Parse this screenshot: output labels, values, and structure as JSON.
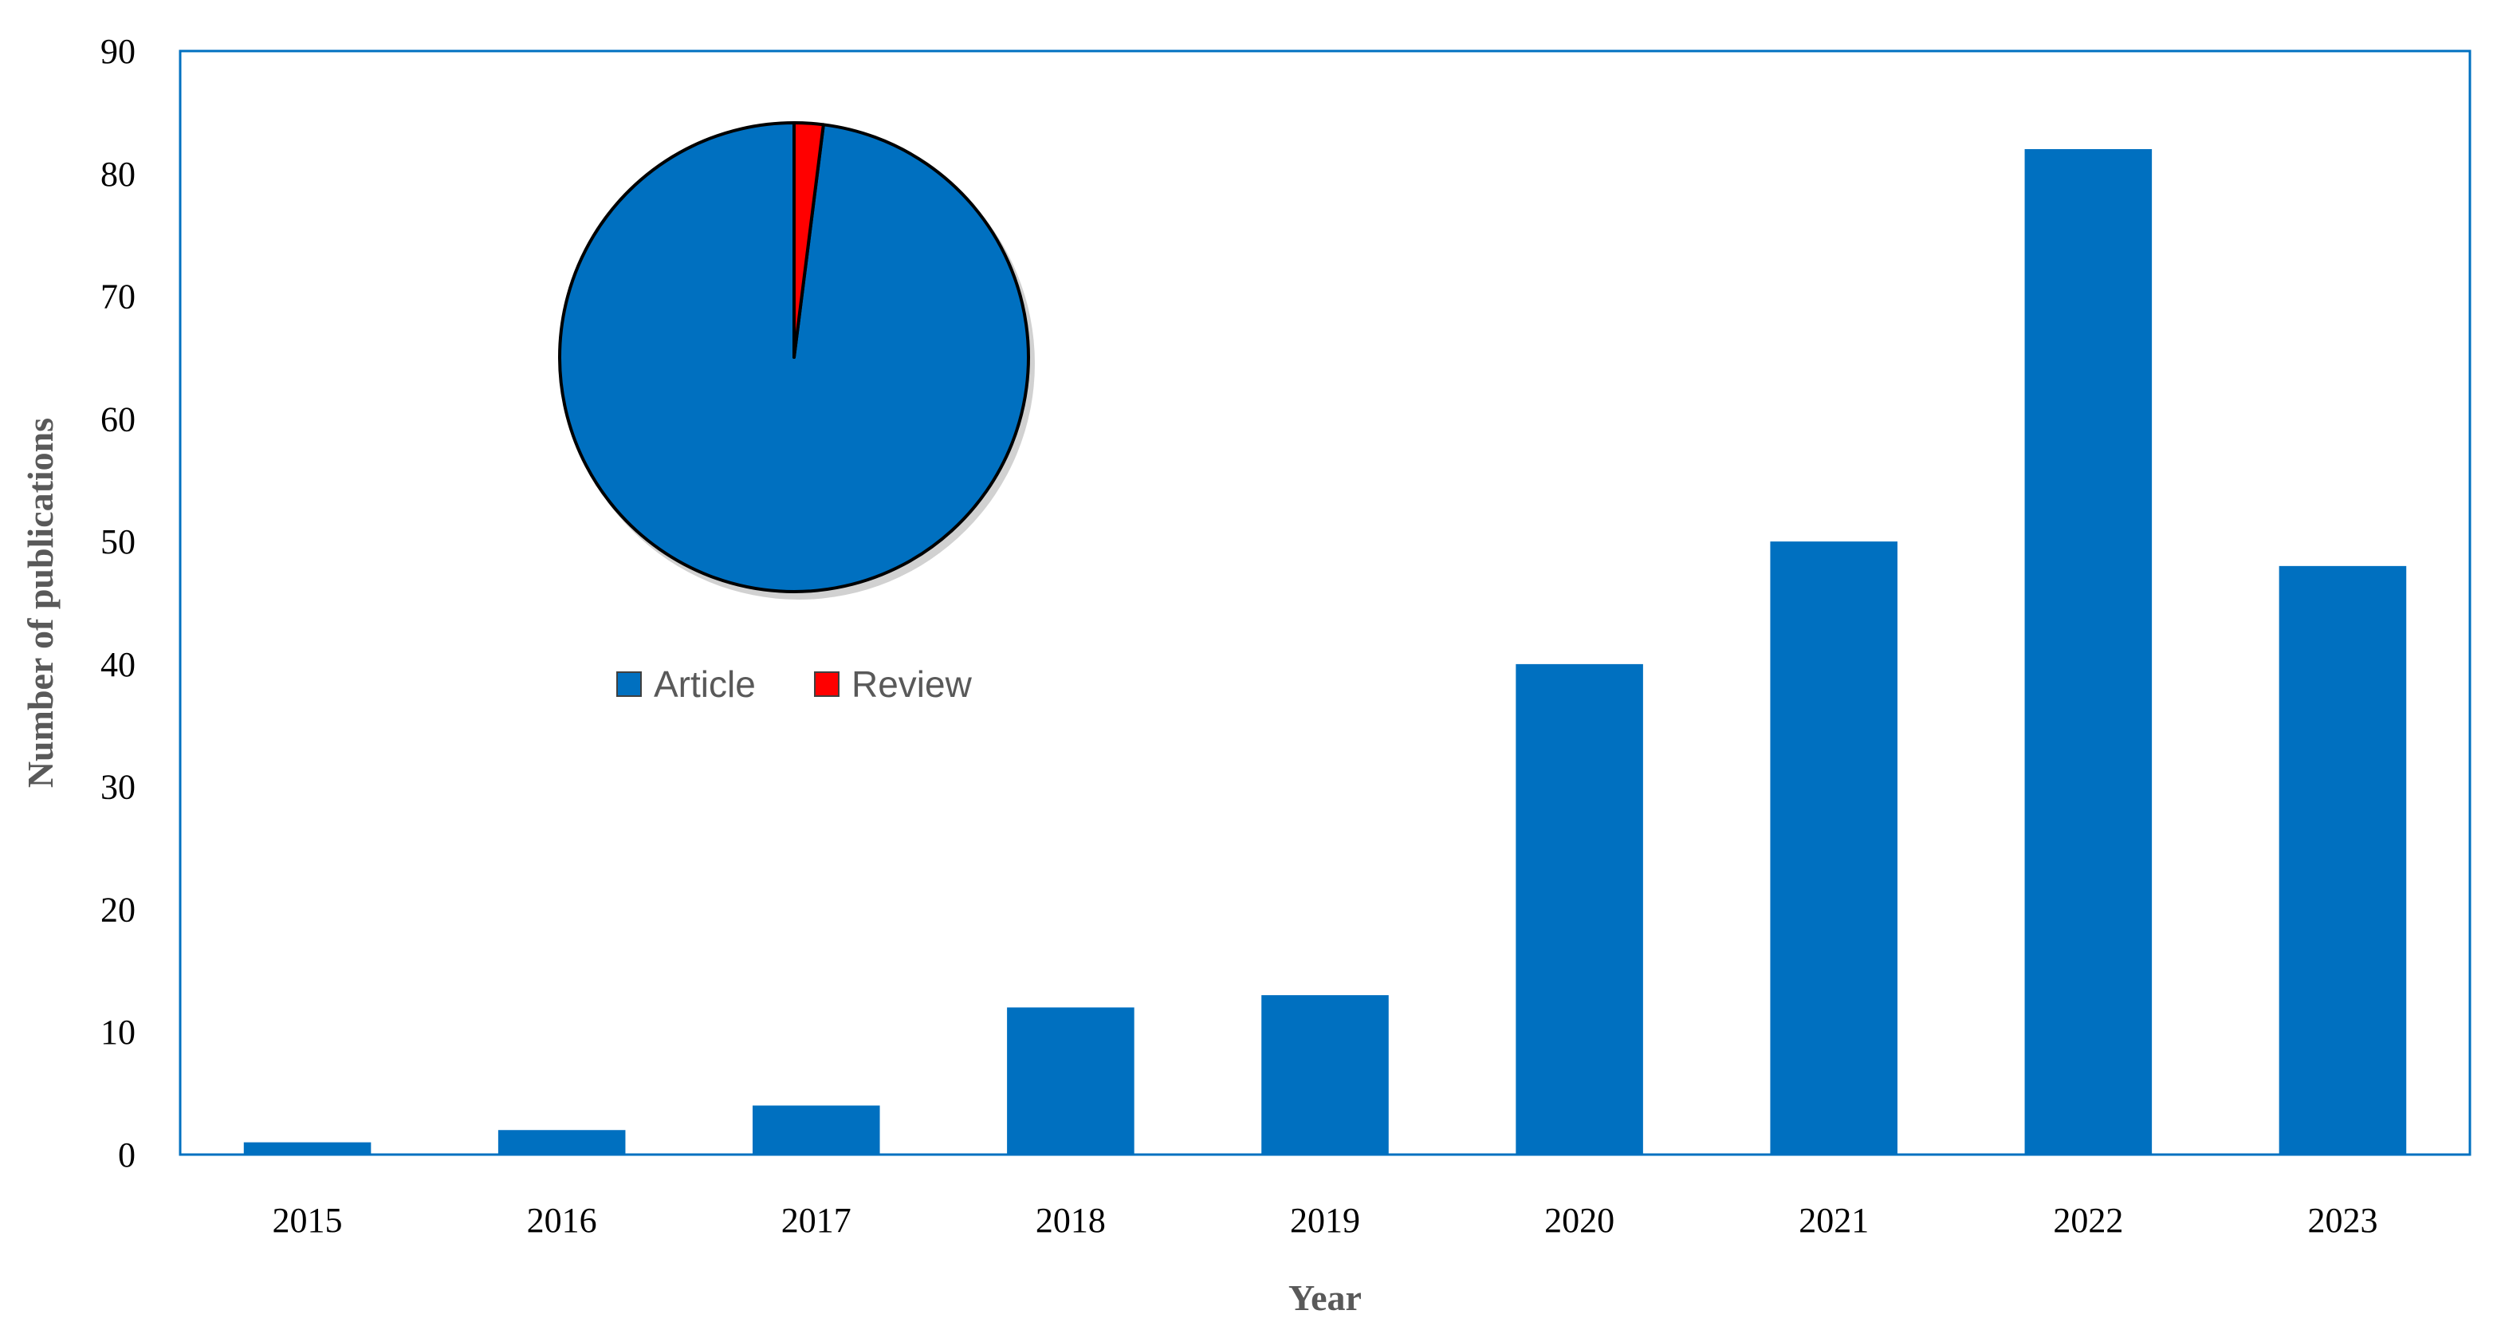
{
  "chart_data": [
    {
      "type": "bar",
      "title": "",
      "xlabel": "Year",
      "ylabel": "Number of publications",
      "categories": [
        "2015",
        "2016",
        "2017",
        "2018",
        "2019",
        "2020",
        "2021",
        "2022",
        "2023"
      ],
      "values": [
        1,
        2,
        4,
        12,
        13,
        40,
        50,
        82,
        48
      ],
      "ylim": [
        0,
        90
      ],
      "yticks": [
        0,
        10,
        20,
        30,
        40,
        50,
        60,
        70,
        80,
        90
      ],
      "grid": false,
      "color": "#0070C0"
    },
    {
      "type": "pie",
      "labels": [
        "Article",
        "Review"
      ],
      "values": [
        98,
        2
      ],
      "colors": [
        "#0070C0",
        "#FF0000"
      ],
      "legend": "bottom"
    }
  ]
}
